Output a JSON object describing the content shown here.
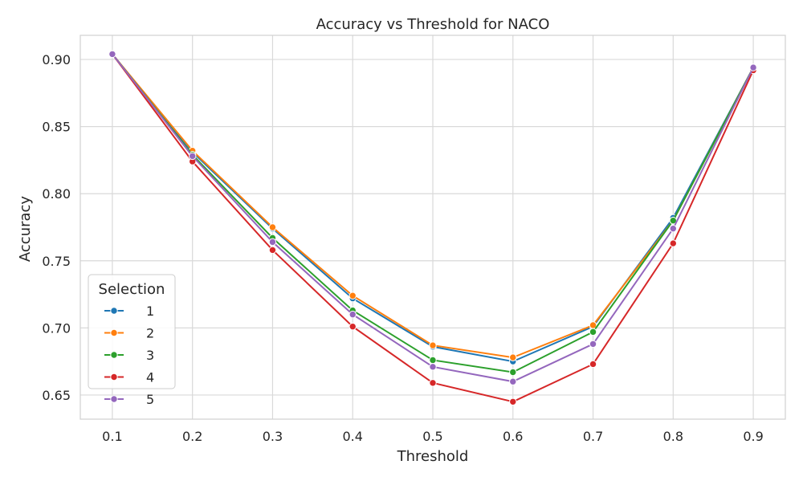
{
  "chart_data": {
    "type": "line",
    "title": "Accuracy vs Threshold for NACO",
    "xlabel": "Threshold",
    "ylabel": "Accuracy",
    "x": [
      0.1,
      0.2,
      0.3,
      0.4,
      0.5,
      0.6,
      0.7,
      0.8,
      0.9
    ],
    "x_tick_labels": [
      "0.1",
      "0.2",
      "0.3",
      "0.4",
      "0.5",
      "0.6",
      "0.7",
      "0.8",
      "0.9"
    ],
    "y_ticks": [
      0.65,
      0.7,
      0.75,
      0.8,
      0.85,
      0.9
    ],
    "y_tick_labels": [
      "0.65",
      "0.70",
      "0.75",
      "0.80",
      "0.85",
      "0.90"
    ],
    "xlim": [
      0.06,
      0.94
    ],
    "ylim": [
      0.632,
      0.918
    ],
    "grid": true,
    "legend": {
      "title": "Selection",
      "placement": "lower-left"
    },
    "series": [
      {
        "name": "1",
        "color": "#1f77b4",
        "values": [
          0.904,
          0.831,
          0.774,
          0.722,
          0.686,
          0.675,
          0.701,
          0.782,
          0.894
        ]
      },
      {
        "name": "2",
        "color": "#ff7f0e",
        "values": [
          0.904,
          0.832,
          0.775,
          0.724,
          0.687,
          0.678,
          0.702,
          0.78,
          0.894
        ]
      },
      {
        "name": "3",
        "color": "#2ca02c",
        "values": [
          0.904,
          0.829,
          0.767,
          0.713,
          0.676,
          0.667,
          0.697,
          0.78,
          0.894
        ]
      },
      {
        "name": "4",
        "color": "#d62728",
        "values": [
          0.904,
          0.824,
          0.758,
          0.701,
          0.659,
          0.645,
          0.673,
          0.763,
          0.892
        ]
      },
      {
        "name": "5",
        "color": "#9467bd",
        "values": [
          0.904,
          0.828,
          0.764,
          0.71,
          0.671,
          0.66,
          0.688,
          0.774,
          0.894
        ]
      }
    ]
  }
}
